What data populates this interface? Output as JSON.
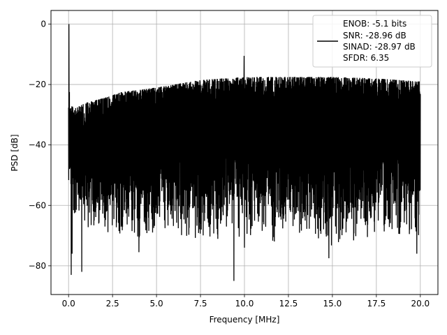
{
  "chart_data": {
    "type": "line",
    "title": "",
    "xlabel": "Frequency [MHz]",
    "ylabel": "PSD [dB]",
    "xlim": [
      -1.0,
      21.0
    ],
    "ylim": [
      -89.5,
      4.5
    ],
    "xticks": [
      0.0,
      2.5,
      5.0,
      7.5,
      10.0,
      12.5,
      15.0,
      17.5,
      20.0
    ],
    "xtick_labels": [
      "0.0",
      "2.5",
      "5.0",
      "7.5",
      "10.0",
      "12.5",
      "15.0",
      "17.5",
      "20.0"
    ],
    "yticks": [
      0,
      -20,
      -40,
      -60,
      -80
    ],
    "ytick_labels": [
      "0",
      "−20",
      "−40",
      "−60",
      "−80"
    ],
    "grid": true,
    "legend": {
      "placement": "top-right",
      "entries": [
        "ENOB: -5.1 bits",
        "SNR: -28.96 dB",
        "SINAD: -28.97 dB",
        "SFDR: 6.35"
      ]
    },
    "series": [
      {
        "color": "#000000",
        "x_range": [
          0.0,
          20.0
        ],
        "envelope_upper_anchors": [
          [
            0.0,
            -27
          ],
          [
            0.5,
            -27.5
          ],
          [
            1.0,
            -26
          ],
          [
            2.0,
            -24.5
          ],
          [
            3.0,
            -22.5
          ],
          [
            5.0,
            -21
          ],
          [
            7.5,
            -18.5
          ],
          [
            10.0,
            -17.5
          ],
          [
            12.5,
            -17.5
          ],
          [
            15.0,
            -17.5
          ],
          [
            17.5,
            -18
          ],
          [
            20.0,
            -19
          ]
        ],
        "envelope_lower_anchors": [
          [
            0.0,
            -58
          ],
          [
            2.0,
            -68
          ],
          [
            5.0,
            -67
          ],
          [
            10.0,
            -68
          ],
          [
            15.0,
            -69
          ],
          [
            20.0,
            -65
          ]
        ],
        "peaks": [
          [
            0.02,
            0.0
          ],
          [
            0.05,
            -22.5
          ],
          [
            9.98,
            -10.5
          ],
          [
            0.2,
            -76
          ],
          [
            0.15,
            -83
          ],
          [
            0.75,
            -82
          ],
          [
            4.0,
            -75.5
          ],
          [
            9.4,
            -85
          ],
          [
            10.0,
            -74
          ],
          [
            14.8,
            -77.5
          ],
          [
            19.8,
            -76
          ]
        ]
      }
    ]
  }
}
